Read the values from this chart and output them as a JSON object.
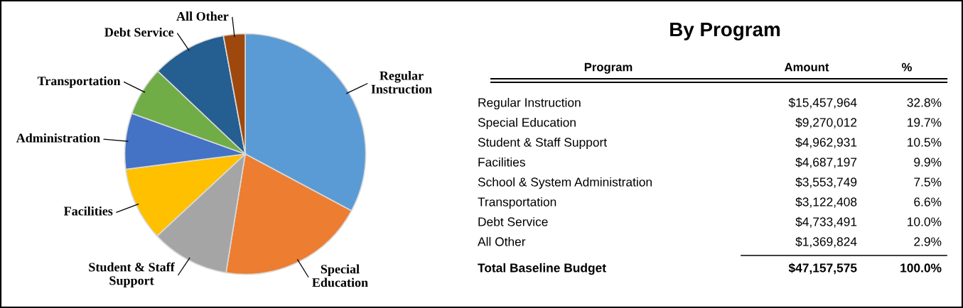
{
  "chart_data": [
    {
      "type": "pie",
      "categories": [
        "Regular\nInstruction",
        "Special\nEducation",
        "Student & Staff\nSupport",
        "Facilities",
        "Administration",
        "Transportation",
        "Debt Service",
        "All Other"
      ],
      "values": [
        32.8,
        19.7,
        10.5,
        9.9,
        7.5,
        6.6,
        10.0,
        2.9
      ],
      "colors": [
        "#5b9bd5",
        "#ed7d31",
        "#a5a5a5",
        "#ffc000",
        "#4472c4",
        "#70ad47",
        "#255e91",
        "#9e480e"
      ]
    },
    {
      "type": "other",
      "title": "By Program",
      "annotations": [
        "Program",
        "Amount",
        "%",
        "Regular Instruction",
        "$15,457,964",
        "32.8%",
        "Special Education",
        "$9,270,012",
        "19.7%",
        "Student & Staff Support",
        "$4,962,931",
        "10.5%",
        "Facilities",
        "$4,687,197",
        "9.9%",
        "School & System Administration",
        "$3,553,749",
        "7.5%",
        "Transportation",
        "$3,122,408",
        "6.6%",
        "Debt Service",
        "$4,733,491",
        "10.0%",
        "All Other",
        "$1,369,824",
        "2.9%",
        "Total Baseline Budget",
        "$47,157,575",
        "100.0%"
      ]
    }
  ]
}
